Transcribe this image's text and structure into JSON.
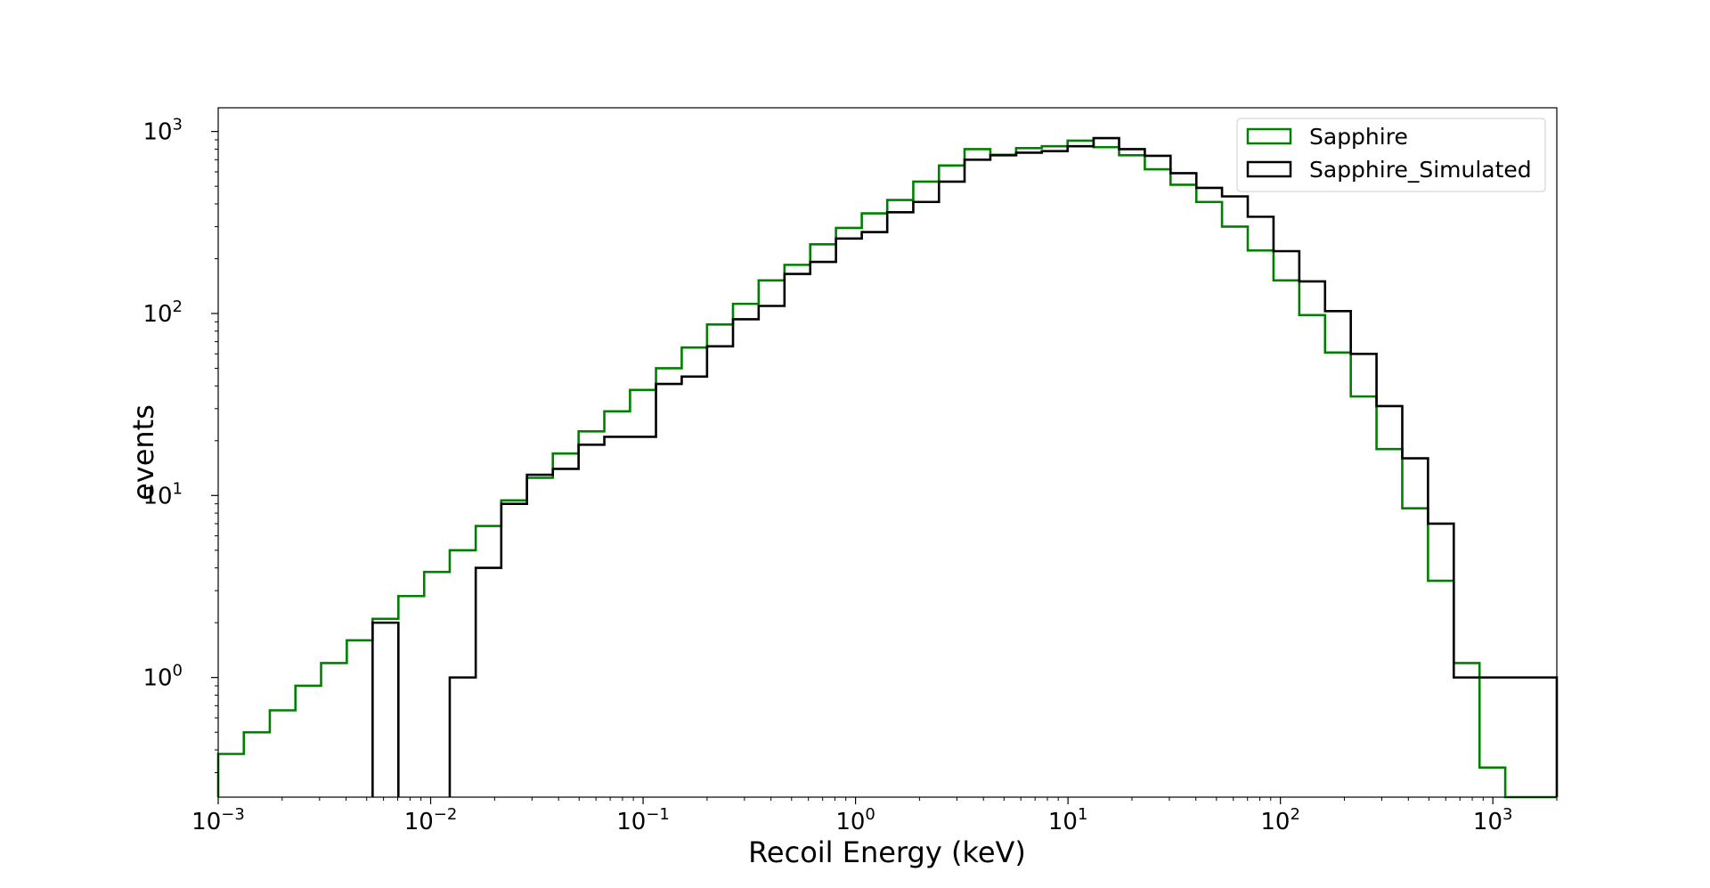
{
  "chart_data": {
    "type": "line",
    "drawstyle": "step-histogram",
    "title": "",
    "xlabel": "Recoil Energy (keV)",
    "ylabel": "events",
    "xscale": "log",
    "yscale": "log",
    "xlim": [
      0.001,
      2000
    ],
    "ylim": [
      0.22,
      1350
    ],
    "x_ticks": [
      {
        "value": 0.001,
        "base": "10",
        "exp": "−3"
      },
      {
        "value": 0.01,
        "base": "10",
        "exp": "−2"
      },
      {
        "value": 0.1,
        "base": "10",
        "exp": "−1"
      },
      {
        "value": 1,
        "base": "10",
        "exp": "0"
      },
      {
        "value": 10,
        "base": "10",
        "exp": "1"
      },
      {
        "value": 100,
        "base": "10",
        "exp": "2"
      },
      {
        "value": 1000,
        "base": "10",
        "exp": "3"
      }
    ],
    "y_ticks": [
      {
        "value": 1,
        "base": "10",
        "exp": "0"
      },
      {
        "value": 10,
        "base": "10",
        "exp": "1"
      },
      {
        "value": 100,
        "base": "10",
        "exp": "2"
      },
      {
        "value": 1000,
        "base": "10",
        "exp": "3"
      }
    ],
    "bin_edges": [
      0.001,
      0.00132,
      0.00175,
      0.00231,
      0.00305,
      0.00403,
      0.00533,
      0.00705,
      0.00932,
      0.0123,
      0.0163,
      0.0215,
      0.0284,
      0.0376,
      0.0497,
      0.0657,
      0.0868,
      0.115,
      0.152,
      0.2,
      0.265,
      0.35,
      0.463,
      0.612,
      0.809,
      1.07,
      1.41,
      1.87,
      2.47,
      3.26,
      4.31,
      5.7,
      7.53,
      9.96,
      13.2,
      17.4,
      23.0,
      30.4,
      40.2,
      53.1,
      70.2,
      92.8,
      122.7,
      162.2,
      214.4,
      283.4,
      374.6,
      495.2,
      654.6,
      865.3,
      1143.8,
      1512.0,
      2000.0
    ],
    "series": [
      {
        "name": "Sapphire",
        "color": "#008000",
        "values": [
          0.38,
          0.5,
          0.66,
          0.9,
          1.2,
          1.6,
          2.1,
          2.8,
          3.8,
          5.0,
          6.8,
          9.4,
          12.5,
          17,
          22.5,
          29,
          38,
          50,
          65,
          87,
          113,
          152,
          185,
          240,
          295,
          355,
          420,
          530,
          650,
          800,
          745,
          810,
          830,
          890,
          820,
          740,
          620,
          510,
          410,
          300,
          222,
          152,
          98,
          61,
          35,
          18,
          8.5,
          3.4,
          1.2,
          0.32,
          0.22,
          0.22
        ]
      },
      {
        "name": "Sapphire_Simulated",
        "color": "#000000",
        "values": [
          null,
          null,
          null,
          null,
          null,
          null,
          2,
          null,
          null,
          1,
          4,
          9,
          13,
          14,
          19,
          21,
          21,
          41,
          45,
          66,
          93,
          110,
          165,
          192,
          258,
          280,
          360,
          410,
          530,
          700,
          740,
          765,
          780,
          830,
          920,
          800,
          735,
          590,
          490,
          440,
          340,
          220,
          150,
          103,
          60,
          31,
          16,
          7,
          1,
          1,
          1,
          1
        ]
      }
    ],
    "grid": false,
    "legend_position": "upper right"
  }
}
